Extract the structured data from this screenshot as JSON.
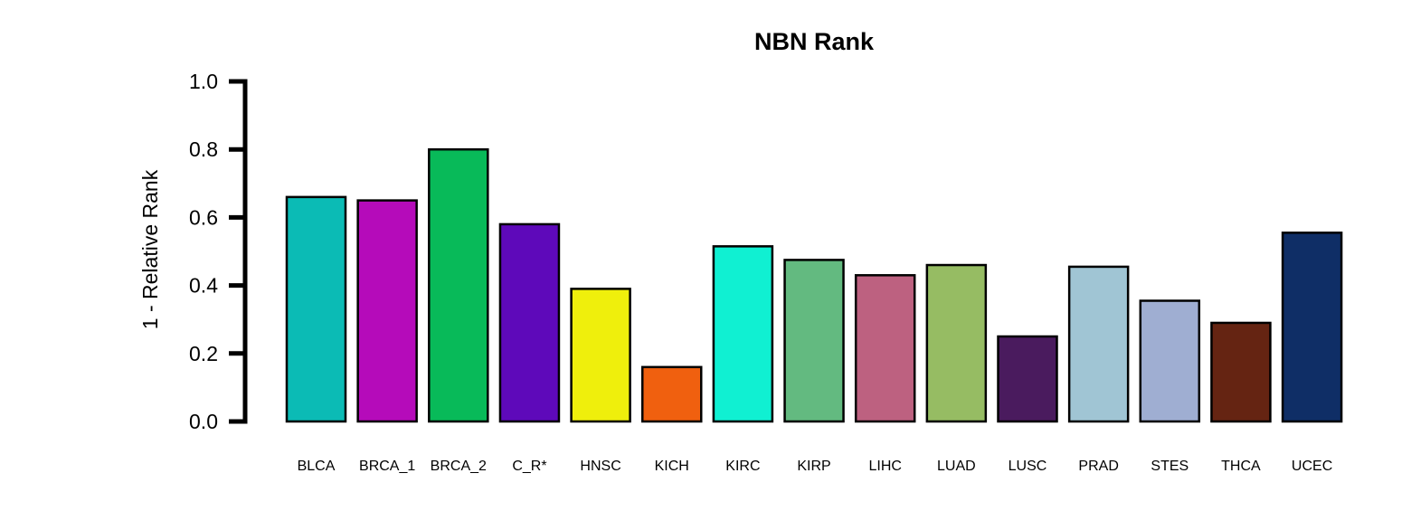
{
  "chart_data": {
    "type": "bar",
    "title": "NBN Rank",
    "xlabel": "",
    "ylabel": "1 - Relative Rank",
    "ylim": [
      0,
      1
    ],
    "yticks": [
      "0.0",
      "0.2",
      "0.4",
      "0.6",
      "0.8",
      "1.0"
    ],
    "grid": false,
    "legend": "none",
    "categories": [
      "BLCA",
      "BRCA_1",
      "BRCA_2",
      "C_R*",
      "HNSC",
      "KICH",
      "KIRC",
      "KIRP",
      "LIHC",
      "LUAD",
      "LUSC",
      "PRAD",
      "STES",
      "THCA",
      "UCEC"
    ],
    "values": [
      0.66,
      0.65,
      0.8,
      0.58,
      0.39,
      0.16,
      0.515,
      0.475,
      0.43,
      0.46,
      0.25,
      0.455,
      0.355,
      0.29,
      0.555
    ],
    "colors": [
      "#0BBBB5",
      "#B50BBA",
      "#08BA59",
      "#5E09BA",
      "#EFEF0C",
      "#F0600F",
      "#10F0D2",
      "#63BA80",
      "#BD6180",
      "#96BC63",
      "#4A1B5E",
      "#A0C5D4",
      "#9FAED2",
      "#652412",
      "#0F2E66"
    ]
  }
}
